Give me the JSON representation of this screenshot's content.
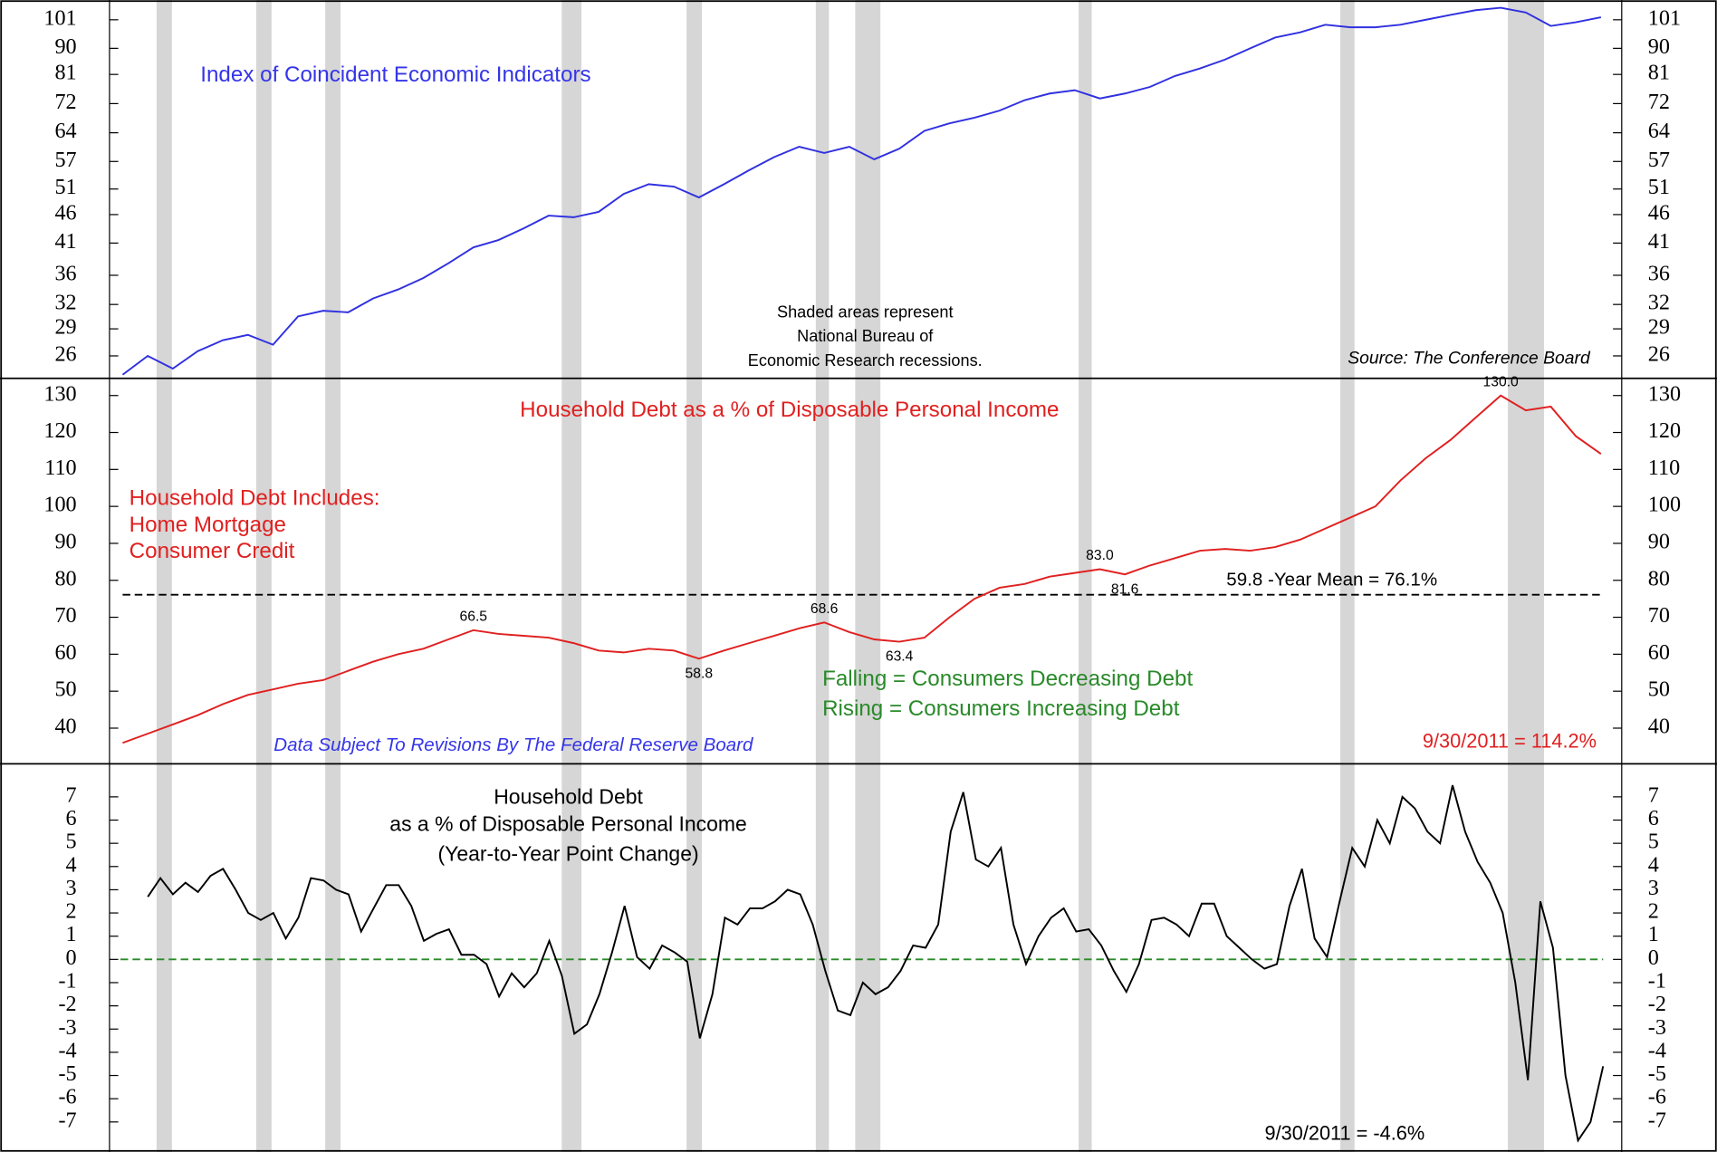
{
  "chart_data": [
    {
      "type": "line",
      "title": "Index of Coincident Economic Indicators",
      "color": "#3030e0",
      "log_scale": true,
      "ylim": [
        23.8,
        107
      ],
      "yticks": [
        26,
        29,
        32,
        36,
        41,
        46,
        51,
        57,
        64,
        72,
        81,
        90,
        101
      ],
      "notes": [
        "Shaded areas represent",
        "National Bureau of",
        "Economic Research recessions."
      ],
      "source": "Source: The Conference Board",
      "values": [
        24.1,
        26,
        24.7,
        26.5,
        27.7,
        28.3,
        27.2,
        30.5,
        31.2,
        31,
        32.8,
        34,
        35.6,
        37.8,
        40.3,
        41.5,
        43.5,
        45.8,
        45.5,
        46.5,
        50,
        52,
        51.5,
        49.3,
        52,
        55,
        58,
        60.5,
        59,
        60.5,
        57.5,
        60,
        64.5,
        66.5,
        68,
        70,
        73,
        75,
        76,
        73.5,
        75,
        77,
        80.5,
        83,
        86,
        90,
        94,
        96,
        99,
        98,
        98,
        99,
        101,
        103,
        105,
        106,
        104,
        98.5,
        100,
        102
      ]
    },
    {
      "type": "line",
      "title": "Household Debt as a % of Disposable Personal Income",
      "color": "#e02020",
      "ylim": [
        30.5,
        134.5
      ],
      "yticks": [
        40,
        50,
        60,
        70,
        80,
        90,
        100,
        110,
        120,
        130
      ],
      "notes": [
        "Household Debt Includes:",
        "Home Mortgage",
        "Consumer Credit"
      ],
      "mean": 76.1,
      "mean_label": "59.8 -Year Mean = 76.1%",
      "legend_notes": [
        "Falling = Consumers Decreasing Debt",
        "Rising = Consumers Increasing Debt"
      ],
      "revision_note": "Data Subject To Revisions By The Federal Reserve Board",
      "last_label": "9/30/2011 = 114.2%",
      "values": [
        36,
        38.5,
        41,
        43.5,
        46.5,
        49,
        50.5,
        52,
        53,
        55.5,
        58,
        60,
        61.5,
        64,
        66.5,
        65.5,
        65,
        64.5,
        63,
        61,
        60.5,
        61.5,
        61,
        58.8,
        61,
        63,
        65,
        67,
        68.6,
        66,
        64,
        63.4,
        64.5,
        70,
        75,
        78,
        79,
        81,
        82,
        83,
        81.6,
        84,
        86,
        88,
        88.5,
        88,
        89,
        91,
        94,
        97,
        100,
        107,
        113,
        118,
        124,
        130,
        126,
        127,
        119,
        114.2
      ],
      "value_labels": [
        null,
        null,
        null,
        null,
        null,
        null,
        null,
        null,
        null,
        null,
        null,
        null,
        null,
        null,
        "66.5",
        null,
        null,
        null,
        null,
        null,
        null,
        null,
        null,
        "58.8",
        null,
        null,
        null,
        null,
        "68.6",
        null,
        null,
        "63.4",
        null,
        null,
        null,
        null,
        null,
        null,
        null,
        "83.0",
        "81.6",
        null,
        null,
        null,
        null,
        null,
        null,
        null,
        null,
        null,
        null,
        null,
        null,
        null,
        null,
        "130.0",
        null,
        null,
        null,
        null
      ]
    },
    {
      "type": "line",
      "title": [
        "Household Debt",
        "as a % of Disposable Personal Income",
        "(Year-to-Year Point Change)"
      ],
      "color": "#000000",
      "ylim": [
        -8.2,
        8.4
      ],
      "yticks": [
        -7,
        -6,
        -5,
        -4,
        -3,
        -2,
        -1,
        0,
        1,
        2,
        3,
        4,
        5,
        6,
        7
      ],
      "reference_line": 0,
      "reference_color": "#2a8a2a",
      "last_label": "9/30/2011 = -4.6%",
      "values": [
        2.7,
        3.5,
        2.8,
        3.3,
        2.9,
        3.6,
        3.9,
        3.0,
        2.0,
        1.7,
        2.0,
        0.9,
        1.8,
        3.5,
        3.4,
        3.0,
        2.8,
        1.2,
        2.2,
        3.2,
        3.2,
        2.3,
        0.8,
        1.1,
        1.3,
        0.2,
        0.2,
        -0.2,
        -1.6,
        -0.6,
        -1.2,
        -0.6,
        0.8,
        -0.7,
        -3.2,
        -2.8,
        -1.5,
        0.3,
        2.3,
        0.1,
        -0.4,
        0.6,
        0.3,
        -0.1,
        -3.4,
        -1.5,
        1.8,
        1.5,
        2.2,
        2.2,
        2.5,
        3.0,
        2.8,
        1.5,
        -0.5,
        -2.2,
        -2.4,
        -1.0,
        -1.5,
        -1.2,
        -0.5,
        0.6,
        0.5,
        1.5,
        5.5,
        7.2,
        4.3,
        4.0,
        4.8,
        1.5,
        -0.2,
        1.0,
        1.8,
        2.2,
        1.2,
        1.3,
        0.6,
        -0.5,
        -1.4,
        -0.2,
        1.7,
        1.8,
        1.5,
        1.0,
        2.4,
        2.4,
        1.0,
        0.5,
        0.0,
        -0.4,
        -0.2,
        2.3,
        3.9,
        0.9,
        0.1,
        2.5,
        4.8,
        4.0,
        6.0,
        5.0,
        7.0,
        6.5,
        5.5,
        5.0,
        7.5,
        5.5,
        4.2,
        3.3,
        2.0,
        -1.0,
        -5.2,
        2.5,
        0.5,
        -5.0,
        -7.8,
        -7.0,
        -4.6
      ]
    }
  ]
}
